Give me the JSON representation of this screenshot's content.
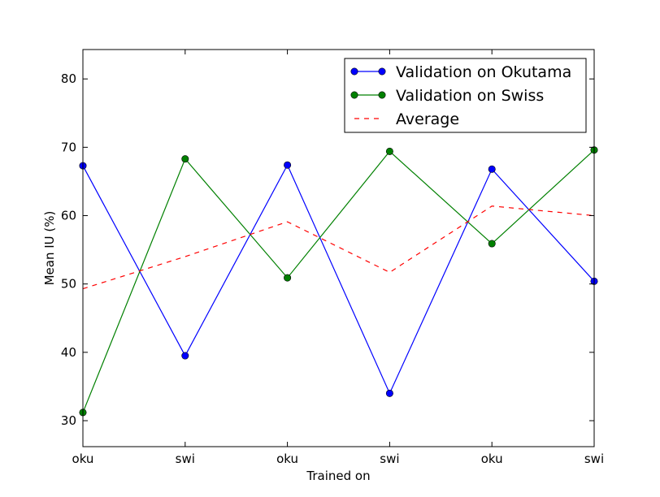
{
  "chart_data": {
    "type": "line",
    "title": "",
    "xlabel": "Trained on",
    "ylabel": "Mean IU (%)",
    "categories": [
      "oku",
      "swi",
      "oku",
      "swi",
      "oku",
      "swi"
    ],
    "x": [
      0,
      1,
      2,
      3,
      4,
      5
    ],
    "xlim": [
      0,
      5
    ],
    "ylim": [
      26.2,
      84.3
    ],
    "yticks": [
      30,
      40,
      50,
      60,
      70,
      80
    ],
    "grid": false,
    "legend_position": "top-right",
    "series": [
      {
        "name": "Validation on Okutama",
        "color": "#0000ff",
        "style": "line-marker",
        "values": [
          67.3,
          39.5,
          67.4,
          34.0,
          66.8,
          50.4
        ]
      },
      {
        "name": "Validation on Swiss",
        "color": "#008000",
        "style": "line-marker",
        "values": [
          31.2,
          68.3,
          50.9,
          69.4,
          55.9,
          69.6
        ]
      },
      {
        "name": "Average",
        "color": "#ff0000",
        "style": "dashed",
        "values": [
          49.3,
          54.0,
          59.1,
          51.7,
          61.4,
          60.0
        ]
      }
    ]
  }
}
